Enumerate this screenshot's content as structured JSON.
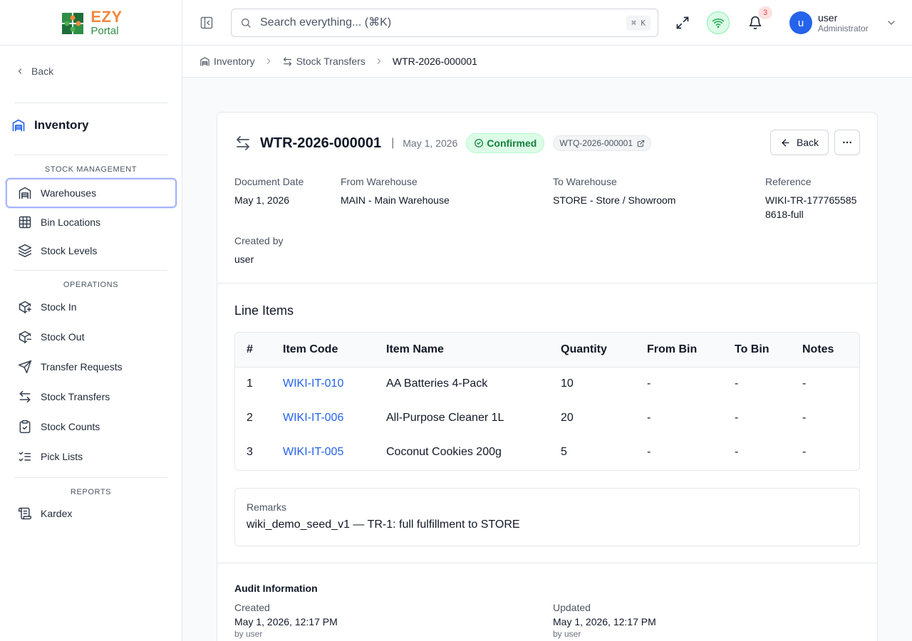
{
  "app": {
    "logo_top": "EZY",
    "logo_bottom": "Portal"
  },
  "sidebar": {
    "back_label": "Back",
    "module_title": "Inventory",
    "sections": {
      "stock_management": "STOCK MANAGEMENT",
      "operations": "OPERATIONS",
      "reports": "REPORTS"
    },
    "items": {
      "warehouses": "Warehouses",
      "bin_locations": "Bin Locations",
      "stock_levels": "Stock Levels",
      "stock_in": "Stock In",
      "stock_out": "Stock Out",
      "transfer_requests": "Transfer Requests",
      "stock_transfers": "Stock Transfers",
      "stock_counts": "Stock Counts",
      "pick_lists": "Pick Lists",
      "kardex": "Kardex"
    }
  },
  "header": {
    "search_placeholder": "Search everything... (⌘K)",
    "search_shortcut": "⌘ K",
    "notification_count": "3",
    "user_initial": "u",
    "user_name": "user",
    "user_role": "Administrator"
  },
  "breadcrumb": {
    "inventory": "Inventory",
    "stock_transfers": "Stock Transfers",
    "current": "WTR-2026-000001"
  },
  "document": {
    "number": "WTR-2026-000001",
    "separator": "|",
    "date": "May 1, 2026",
    "status": "Confirmed",
    "request_ref": "WTQ-2026-000001",
    "back_label": "Back",
    "fields": {
      "document_date_label": "Document Date",
      "document_date": "May 1, 2026",
      "from_warehouse_label": "From Warehouse",
      "from_warehouse": "MAIN - Main Warehouse",
      "to_warehouse_label": "To Warehouse",
      "to_warehouse": "STORE - Store / Showroom",
      "reference_label": "Reference",
      "reference": "WIKI-TR-1777655858618-full",
      "created_by_label": "Created by",
      "created_by": "user"
    }
  },
  "line_items": {
    "title": "Line Items",
    "columns": [
      "#",
      "Item Code",
      "Item Name",
      "Quantity",
      "From Bin",
      "To Bin",
      "Notes"
    ],
    "rows": [
      [
        "1",
        "WIKI-IT-010",
        "AA Batteries 4-Pack",
        "10",
        "-",
        "-",
        "-"
      ],
      [
        "2",
        "WIKI-IT-006",
        "All-Purpose Cleaner 1L",
        "20",
        "-",
        "-",
        "-"
      ],
      [
        "3",
        "WIKI-IT-005",
        "Coconut Cookies 200g",
        "5",
        "-",
        "-",
        "-"
      ]
    ]
  },
  "remarks": {
    "label": "Remarks",
    "text": "wiki_demo_seed_v1 — TR-1: full fulfillment to STORE"
  },
  "audit": {
    "title": "Audit Information",
    "created_label": "Created",
    "created_time": "May 1, 2026, 12:17 PM",
    "created_by": "by user",
    "updated_label": "Updated",
    "updated_time": "May 1, 2026, 12:17 PM",
    "updated_by": "by user"
  },
  "colors": {
    "accent": "#2563eb",
    "status_success": "#15803d",
    "logo_orange": "#f0883e",
    "logo_green": "#2f8f46"
  }
}
